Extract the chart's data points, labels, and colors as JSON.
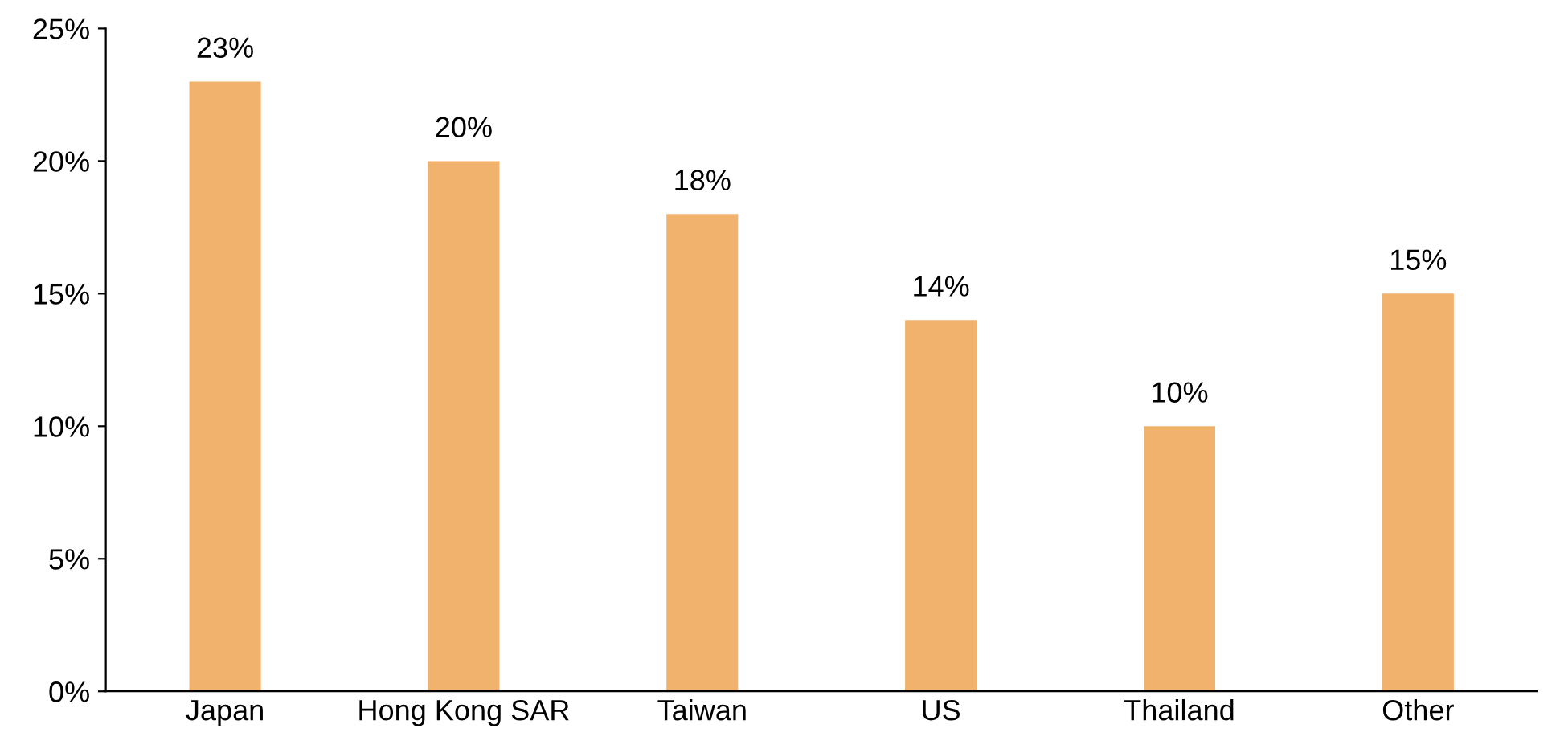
{
  "chart_data": {
    "type": "bar",
    "categories": [
      "Japan",
      "Hong Kong SAR",
      "Taiwan",
      "US",
      "Thailand",
      "Other"
    ],
    "values": [
      23,
      20,
      18,
      14,
      10,
      15
    ],
    "color": "#f0b26c",
    "ylim": [
      0,
      25
    ],
    "yticks": [
      {
        "value": 0,
        "label": "0%"
      },
      {
        "value": 5,
        "label": "5%"
      },
      {
        "value": 10,
        "label": "10%"
      },
      {
        "value": 15,
        "label": "15%"
      },
      {
        "value": 20,
        "label": "20%"
      },
      {
        "value": 25,
        "label": "25%"
      }
    ],
    "value_labels": [
      "23%",
      "20%",
      "18%",
      "14%",
      "10%",
      "15%"
    ],
    "grid": false,
    "legend": false
  }
}
